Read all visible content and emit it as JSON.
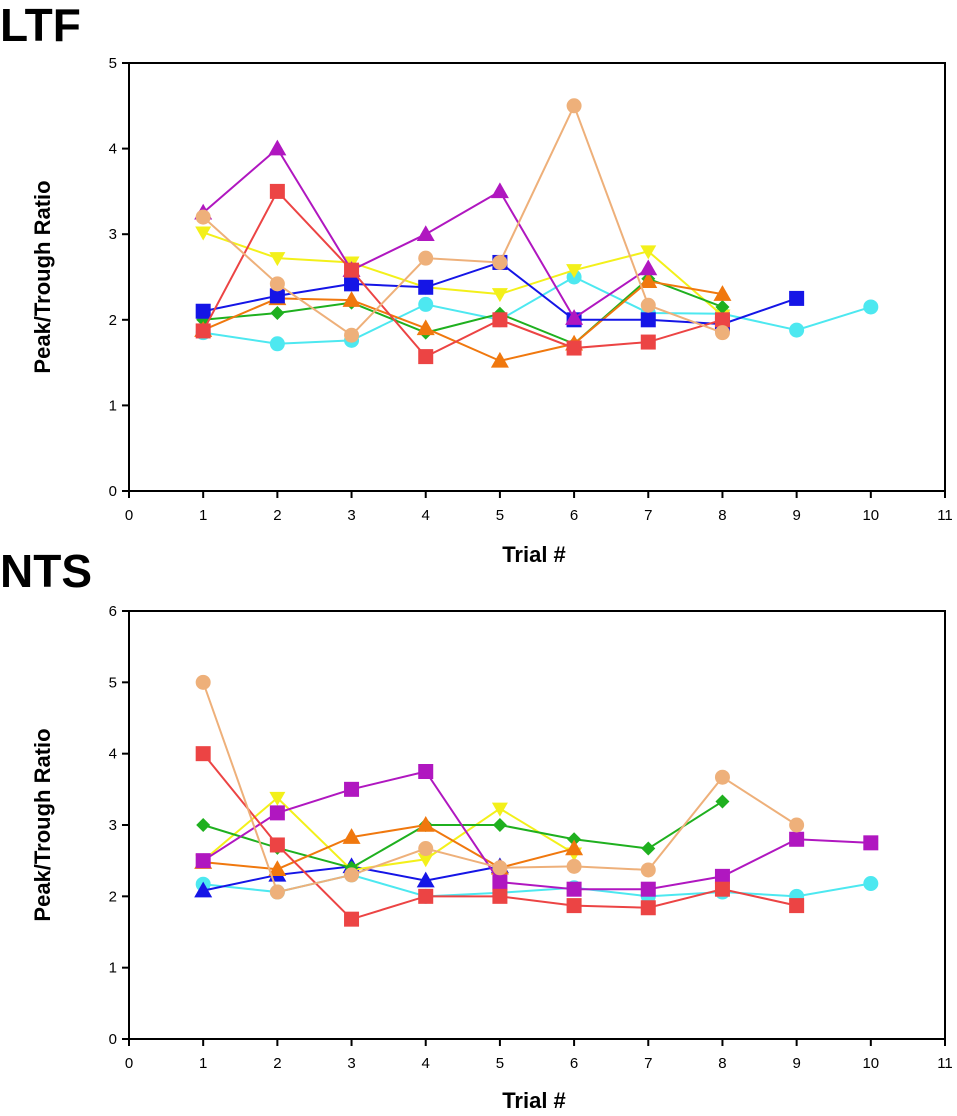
{
  "chart_data": [
    {
      "type": "line",
      "panel": "LTF",
      "xlabel": "Trial #",
      "ylabel": "Peak/Trough Ratio",
      "xlim": [
        0,
        11
      ],
      "ylim": [
        0,
        5
      ],
      "xticks": [
        0,
        1,
        2,
        3,
        4,
        5,
        6,
        7,
        8,
        9,
        10,
        11
      ],
      "yticks": [
        0,
        1,
        2,
        3,
        4,
        5
      ],
      "series": [
        {
          "name": "cyan",
          "color": "#4de8f0",
          "marker": "circle",
          "x": [
            1,
            2,
            3,
            4,
            5,
            6,
            7,
            8,
            9,
            10
          ],
          "y": [
            1.85,
            1.72,
            1.76,
            2.18,
            2.0,
            2.5,
            2.08,
            2.07,
            1.88,
            2.15
          ]
        },
        {
          "name": "yellow",
          "color": "#f3f01a",
          "marker": "triangle-down",
          "x": [
            1,
            2,
            3,
            4,
            5,
            6,
            7,
            8
          ],
          "y": [
            3.02,
            2.72,
            2.67,
            2.38,
            2.3,
            2.58,
            2.8,
            2.05
          ]
        },
        {
          "name": "green",
          "color": "#1fb01f",
          "marker": "diamond",
          "x": [
            1,
            2,
            3,
            4,
            5,
            6,
            7,
            8
          ],
          "y": [
            2.0,
            2.08,
            2.2,
            1.85,
            2.07,
            1.72,
            2.48,
            2.15
          ]
        },
        {
          "name": "orange",
          "color": "#f0780e",
          "marker": "triangle",
          "x": [
            1,
            2,
            3,
            4,
            5,
            6,
            7,
            8
          ],
          "y": [
            1.88,
            2.25,
            2.23,
            1.9,
            1.52,
            1.72,
            2.45,
            2.3
          ]
        },
        {
          "name": "blue",
          "color": "#1515e6",
          "marker": "square",
          "x": [
            1,
            2,
            3,
            4,
            5,
            6,
            7,
            8,
            9
          ],
          "y": [
            2.1,
            2.28,
            2.42,
            2.38,
            2.67,
            2.0,
            2.0,
            1.95,
            2.25
          ]
        },
        {
          "name": "purple",
          "color": "#b017c0",
          "marker": "triangle",
          "x": [
            1,
            2,
            3,
            4,
            5,
            6,
            7
          ],
          "y": [
            3.25,
            4.0,
            2.58,
            3.0,
            3.5,
            2.02,
            2.6
          ]
        },
        {
          "name": "red",
          "color": "#ec4444",
          "marker": "square",
          "x": [
            1,
            2,
            3,
            4,
            5,
            6,
            7,
            8
          ],
          "y": [
            1.87,
            3.5,
            2.58,
            1.57,
            2.0,
            1.67,
            1.74,
            2.0
          ]
        },
        {
          "name": "tan",
          "color": "#eeb07a",
          "marker": "circle",
          "x": [
            1,
            2,
            3,
            4,
            5,
            6,
            7,
            8
          ],
          "y": [
            3.2,
            2.42,
            1.82,
            2.72,
            2.67,
            4.5,
            2.17,
            1.85
          ]
        }
      ]
    },
    {
      "type": "line",
      "panel": "NTS",
      "xlabel": "Trial #",
      "ylabel": "Peak/Trough Ratio",
      "xlim": [
        0,
        11
      ],
      "ylim": [
        0,
        6
      ],
      "xticks": [
        0,
        1,
        2,
        3,
        4,
        5,
        6,
        7,
        8,
        9,
        10,
        11
      ],
      "yticks": [
        0,
        1,
        2,
        3,
        4,
        5,
        6
      ],
      "series": [
        {
          "name": "cyan",
          "color": "#4de8f0",
          "marker": "circle",
          "x": [
            1,
            2,
            3,
            4,
            5,
            6,
            7,
            8,
            9,
            10
          ],
          "y": [
            2.17,
            2.06,
            2.3,
            2.0,
            2.05,
            2.12,
            2.0,
            2.06,
            2.0,
            2.18
          ]
        },
        {
          "name": "blue",
          "color": "#1515e6",
          "marker": "triangle",
          "x": [
            1,
            2,
            3,
            4,
            5
          ],
          "y": [
            2.08,
            2.3,
            2.42,
            2.22,
            2.42
          ]
        },
        {
          "name": "yellow",
          "color": "#f3f01a",
          "marker": "triangle-down",
          "x": [
            1,
            2,
            3,
            4,
            5,
            6
          ],
          "y": [
            2.5,
            3.38,
            2.37,
            2.52,
            3.23,
            2.6
          ]
        },
        {
          "name": "green",
          "color": "#1fb01f",
          "marker": "diamond",
          "x": [
            1,
            2,
            3,
            4,
            5,
            6,
            7,
            8
          ],
          "y": [
            3.0,
            2.68,
            2.4,
            3.0,
            3.0,
            2.8,
            2.67,
            3.33
          ]
        },
        {
          "name": "orange",
          "color": "#f0780e",
          "marker": "triangle",
          "x": [
            1,
            2,
            3,
            4,
            5,
            6
          ],
          "y": [
            2.48,
            2.38,
            2.83,
            3.0,
            2.4,
            2.67
          ]
        },
        {
          "name": "purple",
          "color": "#b017c0",
          "marker": "square",
          "x": [
            1,
            2,
            3,
            4,
            5,
            6,
            7,
            8,
            9,
            10
          ],
          "y": [
            2.5,
            3.17,
            3.5,
            3.75,
            2.2,
            2.1,
            2.1,
            2.28,
            2.8,
            2.75
          ]
        },
        {
          "name": "red",
          "color": "#ec4444",
          "marker": "square",
          "x": [
            1,
            2,
            3,
            4,
            5,
            6,
            7,
            8,
            9
          ],
          "y": [
            4.0,
            2.72,
            1.68,
            2.0,
            2.0,
            1.87,
            1.84,
            2.1,
            1.87
          ]
        },
        {
          "name": "tan",
          "color": "#eeb07a",
          "marker": "circle",
          "x": [
            1,
            2,
            3,
            4,
            5,
            6,
            7,
            8,
            9
          ],
          "y": [
            5.0,
            2.06,
            2.3,
            2.67,
            2.4,
            2.42,
            2.37,
            3.67,
            3.0
          ]
        }
      ]
    }
  ]
}
